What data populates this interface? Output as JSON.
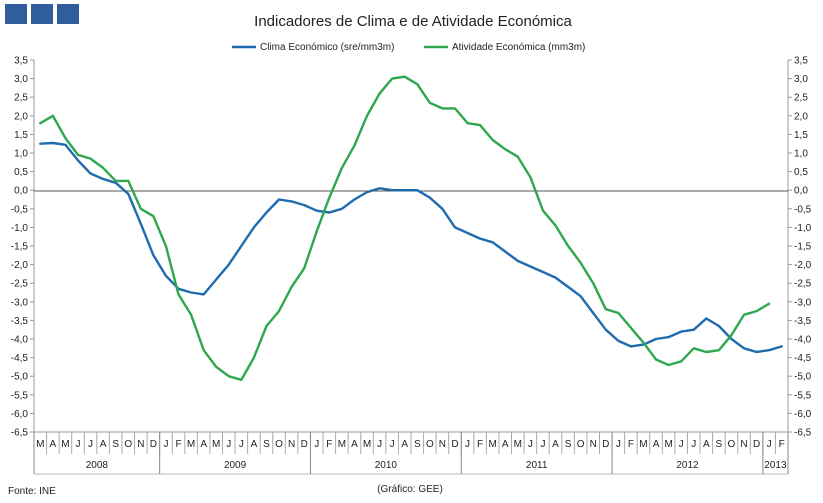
{
  "chart_data": {
    "type": "line",
    "title": "Indicadores de Clima e de Atividade Económica",
    "footer_source": "Fonte: INE",
    "footer_credit": "(Gráfico: GEE)",
    "y_ticks_left": [
      "3,5",
      "3,0",
      "2,5",
      "2,0",
      "1,5",
      "1,0",
      "0,5",
      "0,0",
      "-0,5",
      "-1,0",
      "-1,5",
      "-2,0",
      "-2,5",
      "-3,0",
      "-3,5",
      "-4,0",
      "-4,5",
      "-5,0",
      "-5,5",
      "-6,0",
      "-6,5"
    ],
    "y_ticks_right": [
      "3,5",
      "3,0",
      "2,5",
      "2,0",
      "1,5",
      "1,0",
      "0,5",
      "0,0",
      "-0,5",
      "-1,0",
      "-1,5",
      "-2,0",
      "-2,5",
      "-3,0",
      "-3,5",
      "-4,0",
      "-4,5",
      "-5,0",
      "-5,5",
      "-6,0",
      "-6,5"
    ],
    "ylim": [
      -6.5,
      3.5
    ],
    "month_labels": [
      "M",
      "A",
      "M",
      "J",
      "J",
      "A",
      "S",
      "O",
      "N",
      "D",
      "J",
      "F",
      "M",
      "A",
      "M",
      "J",
      "J",
      "A",
      "S",
      "O",
      "N",
      "D",
      "J",
      "F",
      "M",
      "A",
      "M",
      "J",
      "J",
      "A",
      "S",
      "O",
      "N",
      "D",
      "J",
      "F",
      "M",
      "A",
      "M",
      "J",
      "J",
      "A",
      "S",
      "O",
      "N",
      "D",
      "J",
      "F",
      "M",
      "A",
      "M",
      "J",
      "J",
      "A",
      "S",
      "O",
      "N",
      "D",
      "J",
      "F"
    ],
    "years": [
      {
        "label": "2008",
        "start": 0,
        "count": 10
      },
      {
        "label": "2009",
        "start": 10,
        "count": 12
      },
      {
        "label": "2010",
        "start": 22,
        "count": 12
      },
      {
        "label": "2011",
        "start": 34,
        "count": 12
      },
      {
        "label": "2012",
        "start": 46,
        "count": 12
      },
      {
        "label": "2013",
        "start": 58,
        "count": 2
      }
    ],
    "series": [
      {
        "name": "Clima Económico (sre/mm3m)",
        "color": "#1f6bb0",
        "values": [
          1.25,
          1.27,
          1.22,
          0.8,
          0.45,
          0.3,
          0.2,
          -0.1,
          -0.9,
          -1.75,
          -2.3,
          -2.65,
          -2.75,
          -2.8,
          -2.4,
          -2.0,
          -1.5,
          -1.0,
          -0.6,
          -0.25,
          -0.3,
          -0.4,
          -0.55,
          -0.6,
          -0.5,
          -0.25,
          -0.05,
          0.05,
          0.0,
          0.0,
          0.0,
          -0.2,
          -0.5,
          -1.0,
          -1.15,
          -1.3,
          -1.4,
          -1.65,
          -1.9,
          -2.05,
          -2.2,
          -2.35,
          -2.6,
          -2.85,
          -3.3,
          -3.75,
          -4.05,
          -4.2,
          -4.15,
          -4.0,
          -3.95,
          -3.8,
          -3.75,
          -3.45,
          -3.65,
          -4.0,
          -4.25,
          -4.35,
          -4.3,
          -4.2
        ]
      },
      {
        "name": "Atividade Económica (mm3m)",
        "color": "#2ea84f",
        "values": [
          1.8,
          2.0,
          1.4,
          0.95,
          0.85,
          0.6,
          0.25,
          0.25,
          -0.5,
          -0.7,
          -1.5,
          -2.8,
          -3.35,
          -4.3,
          -4.75,
          -5.0,
          -5.1,
          -4.5,
          -3.65,
          -3.25,
          -2.6,
          -2.1,
          -1.1,
          -0.2,
          0.6,
          1.2,
          2.0,
          2.6,
          3.0,
          3.05,
          2.85,
          2.35,
          2.2,
          2.2,
          1.8,
          1.75,
          1.35,
          1.1,
          0.9,
          0.35,
          -0.55,
          -0.95,
          -1.5,
          -1.95,
          -2.5,
          -3.2,
          -3.3,
          -3.7,
          -4.1,
          -4.55,
          -4.7,
          -4.6,
          -4.25,
          -4.35,
          -4.3,
          -3.9,
          -3.35,
          -3.25,
          -3.05
        ]
      }
    ]
  }
}
